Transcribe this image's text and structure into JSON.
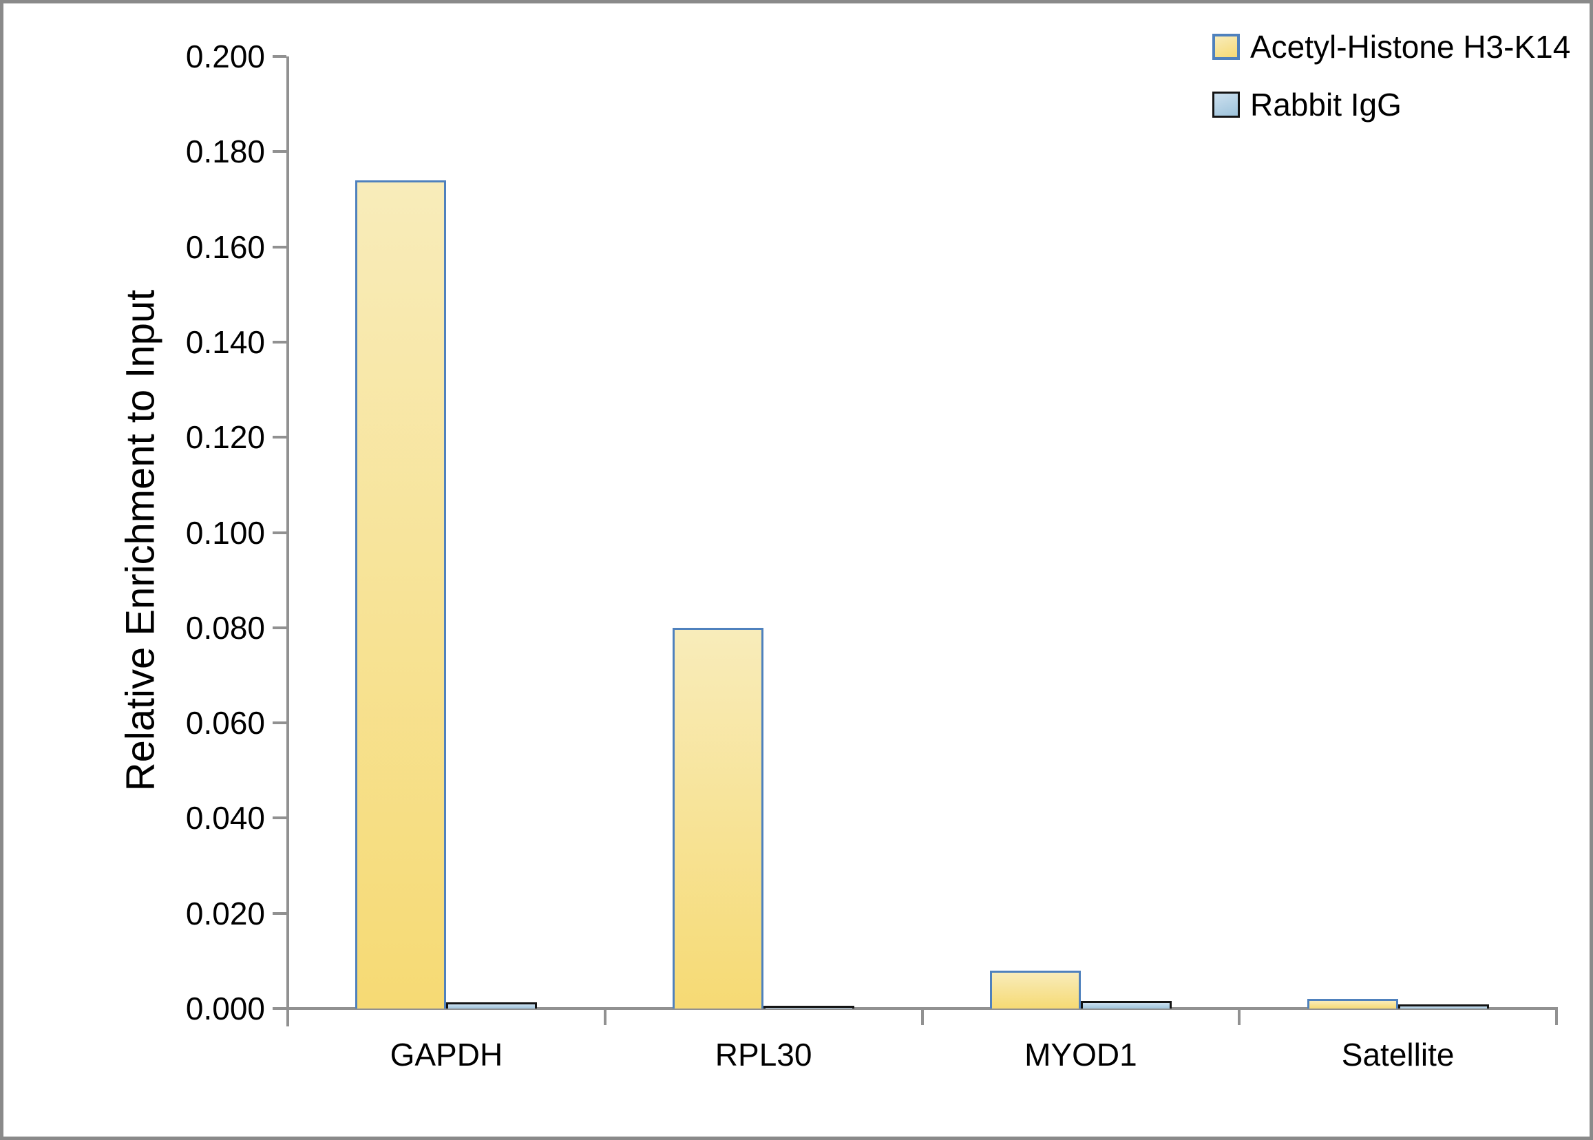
{
  "frame": {
    "border_color": "#8A8A8A",
    "background": "#FFFFFF"
  },
  "chart_data": {
    "type": "bar",
    "title": "",
    "ylabel": "Relative Enrichment to Input",
    "xlabel": "",
    "categories": [
      "GAPDH",
      "RPL30",
      "MYOD1",
      "Satellite"
    ],
    "series": [
      {
        "name": "Acetyl-Histone H3-K14",
        "values": [
          0.174,
          0.08,
          0.008,
          0.002
        ],
        "fill_top": "#F8ECBA",
        "fill_bottom": "#F6DA74",
        "border_color": "#4F81BD"
      },
      {
        "name": "Rabbit IgG",
        "values": [
          0.0013,
          0.0006,
          0.0016,
          0.0008
        ],
        "fill_top": "#CCE0EF",
        "fill_bottom": "#9EC3DB",
        "border_color": "#141414"
      }
    ],
    "ylim": [
      0,
      0.2
    ],
    "y_tick_step": 0.02,
    "y_tick_labels": [
      "0.200",
      "0.180",
      "0.160",
      "0.140",
      "0.120",
      "0.100",
      "0.080",
      "0.060",
      "0.040",
      "0.020",
      "0.000"
    ],
    "grid": "off",
    "legend_position": "top-right",
    "axis_color": "#919191",
    "text_color": "#000000"
  }
}
